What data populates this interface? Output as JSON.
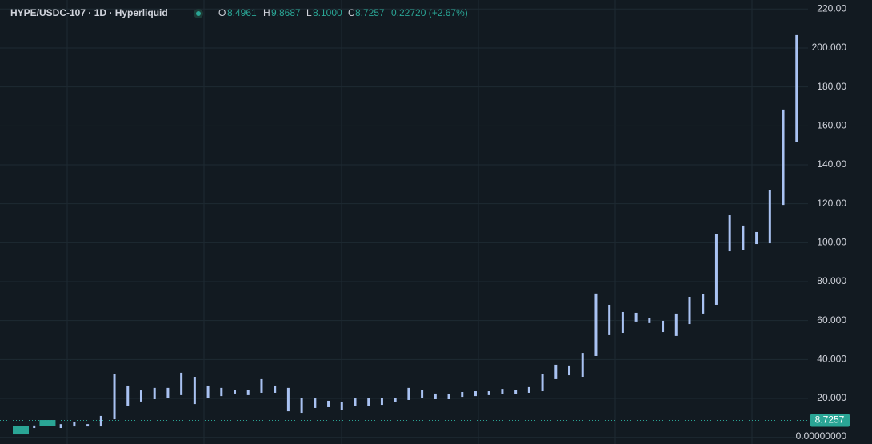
{
  "header": {
    "symbol": "HYPE/USDC-107 · 1D · Hyperliquid",
    "open_label": "O",
    "open": "8.4961",
    "high_label": "H",
    "high": "9.8687",
    "low_label": "L",
    "low": "8.1000",
    "close_label": "C",
    "close": "8.7257",
    "change": "0.22720 (+2.67%)"
  },
  "chart_data": {
    "type": "range-bar",
    "ylim": [
      0,
      220
    ],
    "yticks": [
      {
        "value": 0,
        "label": "0.00000000"
      },
      {
        "value": 20,
        "label": "20.000"
      },
      {
        "value": 40,
        "label": "40.000"
      },
      {
        "value": 60,
        "label": "60.000"
      },
      {
        "value": 80,
        "label": "80.000"
      },
      {
        "value": 100,
        "label": "100.00"
      },
      {
        "value": 120,
        "label": "120.00"
      },
      {
        "value": 140,
        "label": "140.00"
      },
      {
        "value": 160,
        "label": "160.00"
      },
      {
        "value": 180,
        "label": "180.00"
      },
      {
        "value": 200,
        "label": "200.000"
      },
      {
        "value": 220,
        "label": "220.00"
      }
    ],
    "grid": true,
    "color": "#a9c2f2",
    "highlight_color": "#2aa595",
    "highlighted": [
      0,
      2
    ],
    "low": [
      1.5,
      4.8,
      6.0,
      4.8,
      5.6,
      5.6,
      5.6,
      9.3,
      16.3,
      18.4,
      19.6,
      20.4,
      21.7,
      17.1,
      20.4,
      21.2,
      22.5,
      21.7,
      22.9,
      22.9,
      13.4,
      12.6,
      15.1,
      15.5,
      14.2,
      15.9,
      15.9,
      16.7,
      18.0,
      19.2,
      20.4,
      19.6,
      19.6,
      20.8,
      21.2,
      21.7,
      22.1,
      22.1,
      22.9,
      23.7,
      29.9,
      31.9,
      31.1,
      41.8,
      52.5,
      53.7,
      59.5,
      58.7,
      54.1,
      52.1,
      58.2,
      63.6,
      68.1,
      95.6,
      96.4,
      99.3,
      99.7,
      119.4,
      151.5
    ],
    "high": [
      6.0,
      6.1,
      8.9,
      6.8,
      7.7,
      6.8,
      11.0,
      32.4,
      26.6,
      24.1,
      25.4,
      25.4,
      33.2,
      31.1,
      26.6,
      25.4,
      24.5,
      24.5,
      29.9,
      26.6,
      25.4,
      20.4,
      20.0,
      18.8,
      18.0,
      20.0,
      20.0,
      20.4,
      20.4,
      25.4,
      24.5,
      22.5,
      22.1,
      23.3,
      23.7,
      23.7,
      24.9,
      24.5,
      25.8,
      32.4,
      37.3,
      36.9,
      43.4,
      73.9,
      68.1,
      64.4,
      64.0,
      61.5,
      59.9,
      63.6,
      72.2,
      73.5,
      104.3,
      114.1,
      108.8,
      105.5,
      127.2,
      168.4,
      206.6
    ],
    "last_price": 8.7257
  }
}
